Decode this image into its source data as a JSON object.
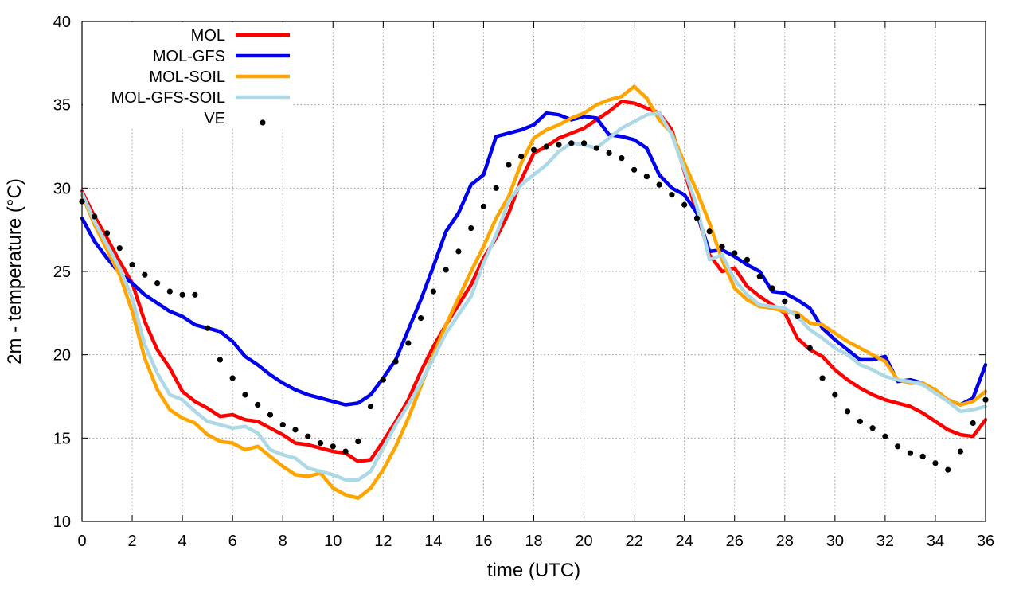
{
  "chart_data": {
    "type": "line",
    "xlabel": "time (UTC)",
    "ylabel": "2m - temperature (°C)",
    "xlim": [
      0,
      36
    ],
    "ylim": [
      10,
      40
    ],
    "xticks": [
      0,
      2,
      4,
      6,
      8,
      10,
      12,
      14,
      16,
      18,
      20,
      22,
      24,
      26,
      28,
      30,
      32,
      34,
      36
    ],
    "yticks": [
      10,
      15,
      20,
      25,
      30,
      35,
      40
    ],
    "grid": true,
    "legend_position": "top-left",
    "series": [
      {
        "name": "MOL",
        "color": "#ff0000",
        "style": "line",
        "x": [
          0,
          0.5,
          1,
          1.5,
          2,
          2.5,
          3,
          3.5,
          4,
          4.5,
          5,
          5.5,
          6,
          6.5,
          7,
          7.5,
          8,
          8.5,
          9,
          9.5,
          10,
          10.5,
          11,
          11.5,
          12,
          12.5,
          13,
          13.5,
          14,
          14.5,
          15,
          15.5,
          16,
          16.5,
          17,
          17.5,
          18,
          18.5,
          19,
          19.5,
          20,
          20.5,
          21,
          21.5,
          22,
          22.5,
          23,
          23.5,
          24,
          24.5,
          25,
          25.5,
          26,
          26.5,
          27,
          27.5,
          28,
          28.5,
          29,
          29.5,
          30,
          30.5,
          31,
          31.5,
          32,
          32.5,
          33,
          33.5,
          34,
          34.5,
          35,
          35.5,
          36
        ],
        "values": [
          29.8,
          28.3,
          27.0,
          25.6,
          24.3,
          22.0,
          20.3,
          19.2,
          17.8,
          17.2,
          16.8,
          16.3,
          16.4,
          16.1,
          16.0,
          15.6,
          15.2,
          14.7,
          14.6,
          14.4,
          14.2,
          14.1,
          13.6,
          13.7,
          14.8,
          16.0,
          17.3,
          19.0,
          20.5,
          21.8,
          23.0,
          24.2,
          25.8,
          27.0,
          28.5,
          30.5,
          32.1,
          32.5,
          33.0,
          33.3,
          33.6,
          34.1,
          34.6,
          35.2,
          35.1,
          34.8,
          34.5,
          33.5,
          31.0,
          28.5,
          26.0,
          25.0,
          25.2,
          24.1,
          23.5,
          23.0,
          22.5,
          21.0,
          20.3,
          19.9,
          19.1,
          18.5,
          18.0,
          17.6,
          17.3,
          17.1,
          16.9,
          16.5,
          16.0,
          15.5,
          15.2,
          15.1,
          16.1
        ]
      },
      {
        "name": "MOL-GFS",
        "color": "#0000ee",
        "style": "line",
        "x": [
          0,
          0.5,
          1,
          1.5,
          2,
          2.5,
          3,
          3.5,
          4,
          4.5,
          5,
          5.5,
          6,
          6.5,
          7,
          7.5,
          8,
          8.5,
          9,
          9.5,
          10,
          10.5,
          11,
          11.5,
          12,
          12.5,
          13,
          13.5,
          14,
          14.5,
          15,
          15.5,
          16,
          16.5,
          17,
          17.5,
          18,
          18.5,
          19,
          19.5,
          20,
          20.5,
          21,
          21.5,
          22,
          22.5,
          23,
          23.5,
          24,
          24.5,
          25,
          25.5,
          26,
          26.5,
          27,
          27.5,
          28,
          28.5,
          29,
          29.5,
          30,
          30.5,
          31,
          31.5,
          32,
          32.5,
          33,
          33.5,
          34,
          34.5,
          35,
          35.5,
          36
        ],
        "values": [
          28.2,
          26.8,
          25.8,
          24.9,
          24.3,
          23.6,
          23.1,
          22.6,
          22.3,
          21.8,
          21.6,
          21.4,
          20.8,
          19.9,
          19.4,
          18.8,
          18.3,
          17.9,
          17.6,
          17.4,
          17.2,
          17.0,
          17.1,
          17.6,
          18.6,
          19.7,
          21.5,
          23.3,
          25.3,
          27.4,
          28.5,
          30.2,
          30.8,
          33.1,
          33.3,
          33.5,
          33.8,
          34.5,
          34.4,
          34.1,
          34.3,
          34.2,
          33.2,
          33.1,
          32.9,
          32.4,
          30.8,
          30.0,
          29.6,
          28.5,
          26.2,
          26.3,
          25.9,
          25.4,
          25.0,
          23.8,
          23.7,
          23.3,
          22.8,
          21.6,
          20.9,
          20.3,
          19.7,
          19.7,
          19.9,
          18.4,
          18.5,
          18.3,
          17.7,
          17.3,
          17.0,
          17.4,
          19.4
        ]
      },
      {
        "name": "MOL-SOIL",
        "color": "#ffa500",
        "style": "line",
        "x": [
          0,
          0.5,
          1,
          1.5,
          2,
          2.5,
          3,
          3.5,
          4,
          4.5,
          5,
          5.5,
          6,
          6.5,
          7,
          7.5,
          8,
          8.5,
          9,
          9.5,
          10,
          10.5,
          11,
          11.5,
          12,
          12.5,
          13,
          13.5,
          14,
          14.5,
          15,
          15.5,
          16,
          16.5,
          17,
          17.5,
          18,
          18.5,
          19,
          19.5,
          20,
          20.5,
          21,
          21.5,
          22,
          22.5,
          23,
          23.5,
          24,
          24.5,
          25,
          25.5,
          26,
          26.5,
          27,
          27.5,
          28,
          28.5,
          29,
          29.5,
          30,
          30.5,
          31,
          31.5,
          32,
          32.5,
          33,
          33.5,
          34,
          34.5,
          35,
          35.5,
          36
        ],
        "values": [
          29.6,
          27.8,
          26.3,
          24.8,
          22.6,
          19.8,
          17.9,
          16.7,
          16.2,
          15.9,
          15.2,
          14.8,
          14.7,
          14.3,
          14.5,
          13.9,
          13.3,
          12.8,
          12.7,
          12.9,
          12.0,
          11.6,
          11.4,
          12.0,
          13.1,
          14.5,
          16.2,
          18.1,
          20.0,
          21.8,
          23.4,
          25.0,
          26.5,
          28.2,
          29.5,
          31.5,
          33.0,
          33.5,
          33.8,
          34.2,
          34.5,
          35.0,
          35.3,
          35.5,
          36.1,
          35.4,
          34.1,
          33.3,
          31.5,
          29.8,
          27.9,
          25.7,
          24.0,
          23.3,
          22.9,
          22.8,
          22.6,
          22.5,
          21.9,
          21.8,
          21.3,
          20.8,
          20.4,
          20.0,
          19.6,
          18.5,
          18.3,
          18.3,
          17.9,
          17.3,
          17.0,
          17.2,
          17.8
        ]
      },
      {
        "name": "MOL-GFS-SOIL",
        "color": "#add8e6",
        "style": "line",
        "x": [
          0,
          0.5,
          1,
          1.5,
          2,
          2.5,
          3,
          3.5,
          4,
          4.5,
          5,
          5.5,
          6,
          6.5,
          7,
          7.5,
          8,
          8.5,
          9,
          9.5,
          10,
          10.5,
          11,
          11.5,
          12,
          12.5,
          13,
          13.5,
          14,
          14.5,
          15,
          15.5,
          16,
          16.5,
          17,
          17.5,
          18,
          18.5,
          19,
          19.5,
          20,
          20.5,
          21,
          21.5,
          22,
          22.5,
          23,
          23.5,
          24,
          24.5,
          25,
          25.5,
          26,
          26.5,
          27,
          27.5,
          28,
          28.5,
          29,
          29.5,
          30,
          30.5,
          31,
          31.5,
          32,
          32.5,
          33,
          33.5,
          34,
          34.5,
          35,
          35.5,
          36
        ],
        "values": [
          29.7,
          28.0,
          26.6,
          25.2,
          23.4,
          20.6,
          18.9,
          17.6,
          17.3,
          16.6,
          16.0,
          15.8,
          15.6,
          15.7,
          15.3,
          14.3,
          14.0,
          13.8,
          13.2,
          13.0,
          12.8,
          12.5,
          12.5,
          13.0,
          14.4,
          15.8,
          17.0,
          18.3,
          19.8,
          21.3,
          22.4,
          23.5,
          25.5,
          27.2,
          29.2,
          30.2,
          30.8,
          31.4,
          32.2,
          32.7,
          32.6,
          32.4,
          33.0,
          33.6,
          34.0,
          34.4,
          34.5,
          33.2,
          31.1,
          28.9,
          25.7,
          26.0,
          24.5,
          23.6,
          23.0,
          22.9,
          22.8,
          22.3,
          21.5,
          21.0,
          20.4,
          20.0,
          19.4,
          19.1,
          18.7,
          18.5,
          18.4,
          18.2,
          17.7,
          17.2,
          16.6,
          16.7,
          16.9
        ]
      },
      {
        "name": "VE",
        "color": "#000000",
        "style": "points",
        "x": [
          0,
          0.5,
          1,
          1.5,
          2,
          2.5,
          3,
          3.5,
          4,
          4.5,
          5,
          5.5,
          6,
          6.5,
          7,
          7.5,
          8,
          8.5,
          9,
          9.5,
          10,
          10.5,
          11,
          11.5,
          12,
          12.5,
          13,
          13.5,
          14,
          14.5,
          15,
          15.5,
          16,
          16.5,
          17,
          17.5,
          18,
          18.5,
          19,
          19.5,
          20,
          20.5,
          21,
          21.5,
          22,
          22.5,
          23,
          23.5,
          24,
          24.5,
          25,
          25.5,
          26,
          26.5,
          27,
          27.5,
          28,
          28.5,
          29,
          29.5,
          30,
          30.5,
          31,
          31.5,
          32,
          32.5,
          33,
          33.5,
          34,
          34.5,
          35,
          35.5,
          36
        ],
        "values": [
          29.2,
          28.3,
          27.3,
          26.4,
          25.4,
          24.8,
          24.3,
          23.8,
          23.6,
          23.6,
          21.6,
          19.7,
          18.6,
          17.6,
          17.0,
          16.4,
          15.8,
          15.5,
          15.1,
          14.7,
          14.5,
          14.2,
          14.8,
          16.9,
          18.5,
          19.6,
          20.7,
          22.2,
          23.8,
          25.1,
          26.2,
          27.6,
          28.9,
          30.0,
          31.4,
          31.9,
          32.3,
          32.5,
          32.6,
          32.7,
          32.7,
          32.4,
          32.1,
          31.8,
          31.1,
          30.7,
          30.2,
          29.6,
          29.0,
          28.2,
          27.4,
          26.5,
          26.1,
          25.7,
          24.7,
          24.0,
          23.2,
          22.3,
          20.4,
          18.6,
          17.6,
          16.6,
          16.0,
          15.6,
          15.1,
          14.5,
          14.1,
          13.9,
          13.5,
          13.1,
          14.2,
          15.9,
          17.3
        ]
      }
    ]
  }
}
